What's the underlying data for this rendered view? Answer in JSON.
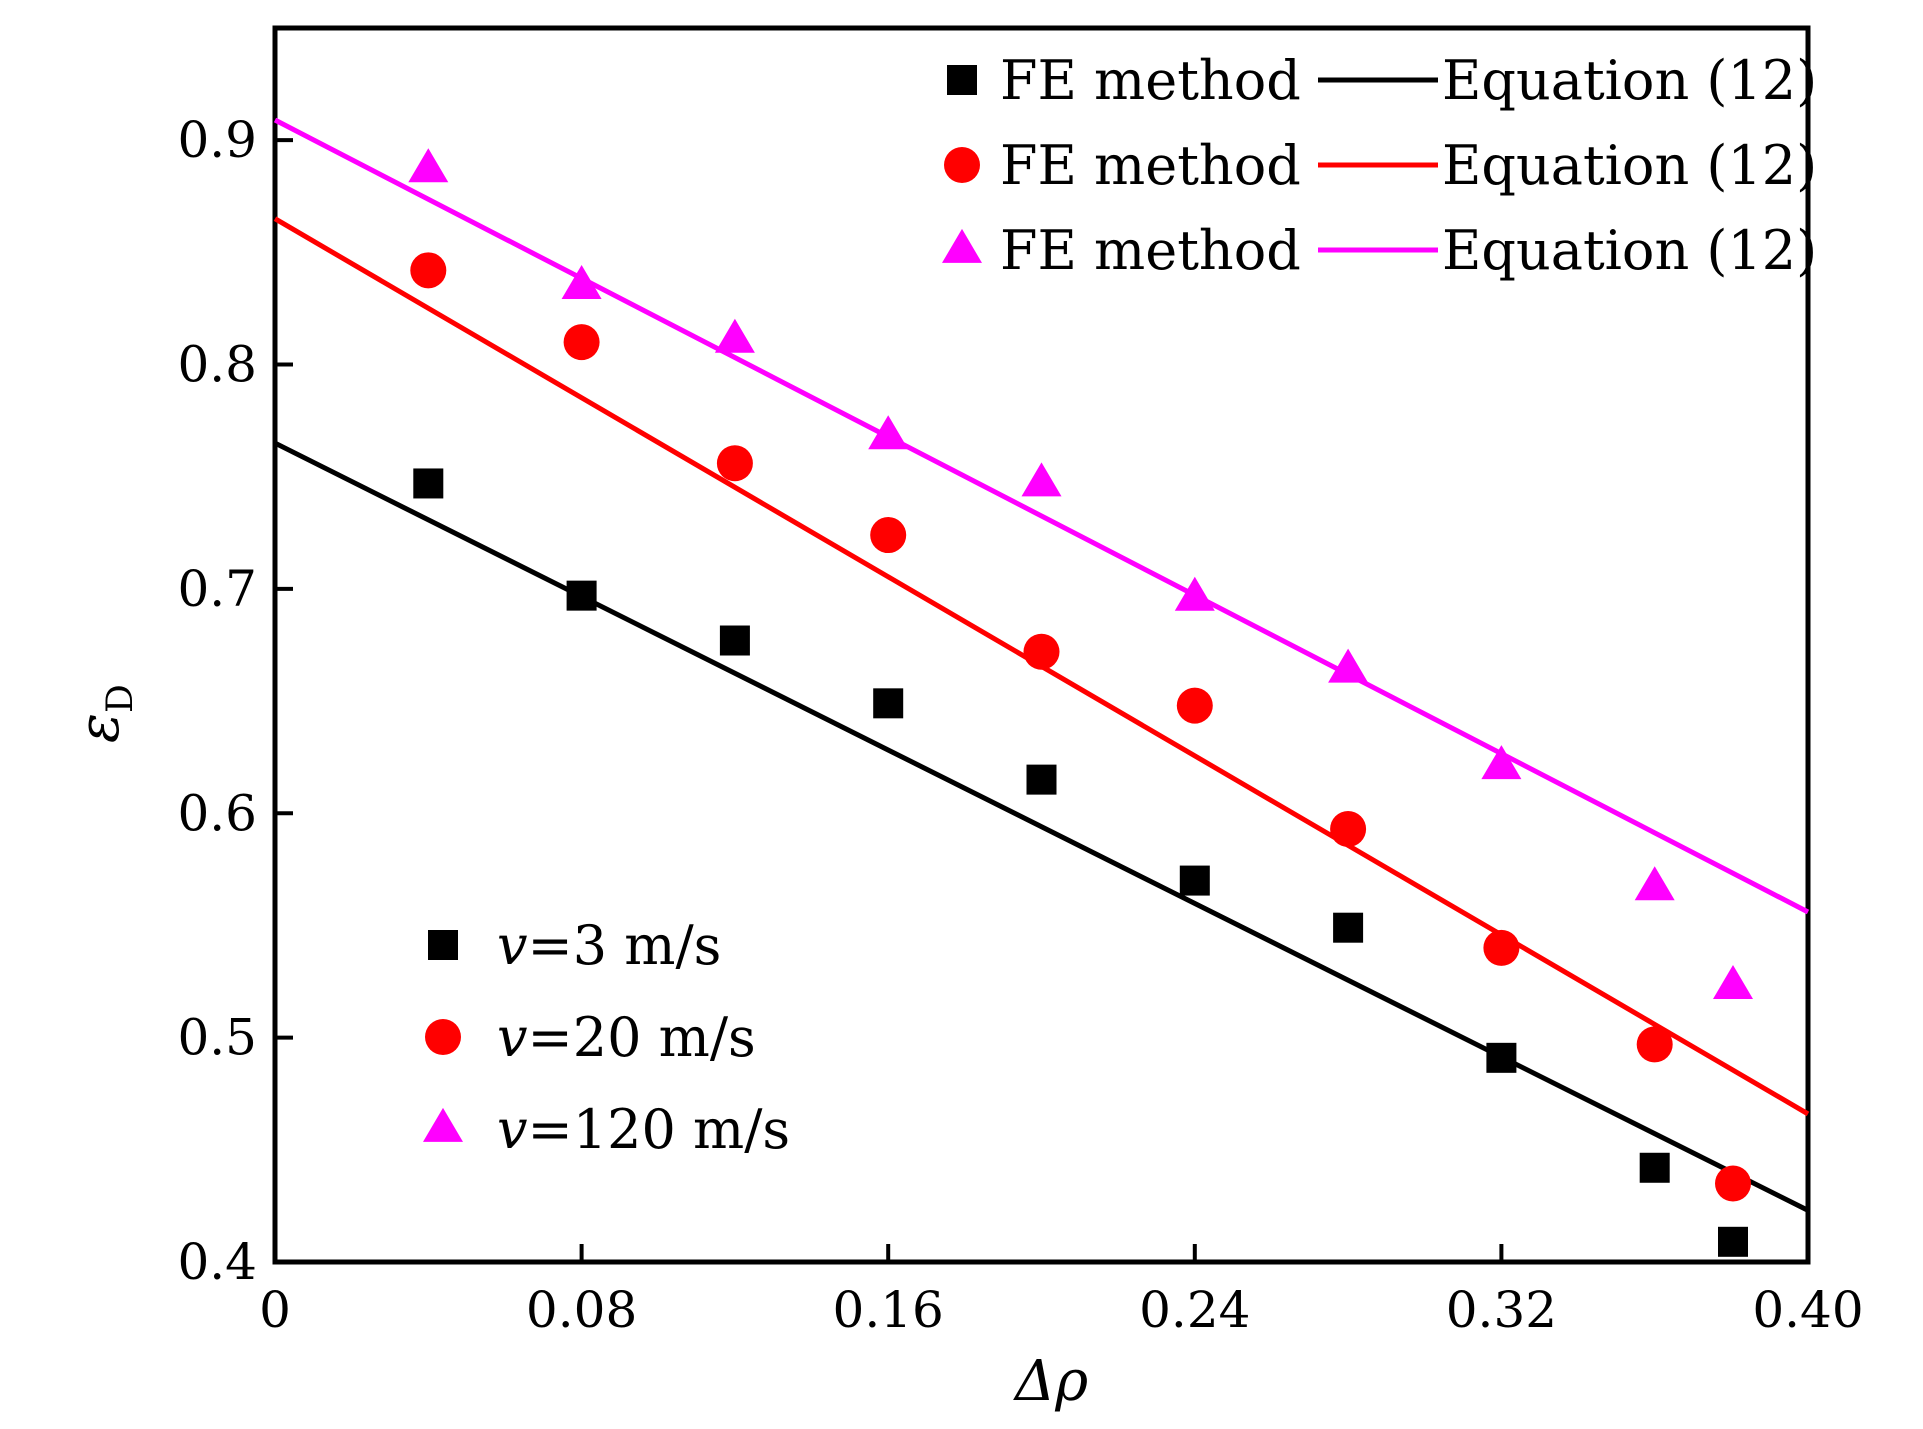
{
  "chart_data": {
    "type": "scatter",
    "xlabel": "Δρ",
    "ylabel": "ε",
    "ylabel_sub": "D",
    "xlim": [
      0,
      0.4
    ],
    "ylim": [
      0.4,
      0.95
    ],
    "xticks": [
      0,
      0.08,
      0.16,
      0.24,
      0.32,
      0.4
    ],
    "xtick_labels": [
      "0",
      "0.08",
      "0.16",
      "0.24",
      "0.32",
      "0.40"
    ],
    "yticks": [
      0.4,
      0.5,
      0.6,
      0.7,
      0.8,
      0.9
    ],
    "ytick_labels": [
      "0.4",
      "0.5",
      "0.6",
      "0.7",
      "0.8",
      "0.9"
    ],
    "grid": false,
    "legend_top": {
      "placement": "top-right",
      "entries": [
        {
          "marker": "square",
          "color": "#000000",
          "marker_label": "FE method",
          "line_label": "Equation (12)"
        },
        {
          "marker": "circle",
          "color": "#ff0000",
          "marker_label": "FE method",
          "line_label": "Equation (12)"
        },
        {
          "marker": "triangle",
          "color": "#ff00ff",
          "marker_label": "FE method",
          "line_label": "Equation (12)"
        }
      ]
    },
    "legend_bottom": {
      "placement": "bottom-left",
      "entries": [
        {
          "marker": "square",
          "color": "#000000",
          "var": "v",
          "value_text": "=3 m/s"
        },
        {
          "marker": "circle",
          "color": "#ff0000",
          "var": "v",
          "value_text": "=20 m/s"
        },
        {
          "marker": "triangle",
          "color": "#ff00ff",
          "var": "v",
          "value_text": "=120 m/s"
        }
      ]
    },
    "series": [
      {
        "color": "#000000",
        "marker": "square",
        "points": [
          [
            0.04,
            0.747
          ],
          [
            0.08,
            0.697
          ],
          [
            0.12,
            0.677
          ],
          [
            0.16,
            0.649
          ],
          [
            0.2,
            0.615
          ],
          [
            0.24,
            0.57
          ],
          [
            0.28,
            0.549
          ],
          [
            0.32,
            0.491
          ],
          [
            0.36,
            0.442
          ],
          [
            0.4,
            0.409
          ]
        ],
        "line": [
          [
            0,
            0.765
          ],
          [
            0.4,
            0.423
          ]
        ]
      },
      {
        "color": "#ff0000",
        "marker": "circle",
        "points": [
          [
            0.04,
            0.842
          ],
          [
            0.08,
            0.81
          ],
          [
            0.12,
            0.756
          ],
          [
            0.16,
            0.724
          ],
          [
            0.2,
            0.672
          ],
          [
            0.24,
            0.648
          ],
          [
            0.28,
            0.593
          ],
          [
            0.32,
            0.54
          ],
          [
            0.36,
            0.497
          ],
          [
            0.4,
            0.435
          ]
        ],
        "line": [
          [
            0,
            0.865
          ],
          [
            0.4,
            0.466
          ]
        ]
      },
      {
        "color": "#ff00ff",
        "marker": "triangle",
        "points": [
          [
            0.04,
            0.887
          ],
          [
            0.08,
            0.835
          ],
          [
            0.12,
            0.811
          ],
          [
            0.16,
            0.768
          ],
          [
            0.2,
            0.747
          ],
          [
            0.24,
            0.696
          ],
          [
            0.28,
            0.664
          ],
          [
            0.32,
            0.621
          ],
          [
            0.36,
            0.567
          ],
          [
            0.4,
            0.523
          ]
        ],
        "line": [
          [
            0,
            0.909
          ],
          [
            0.4,
            0.556
          ]
        ]
      }
    ]
  }
}
